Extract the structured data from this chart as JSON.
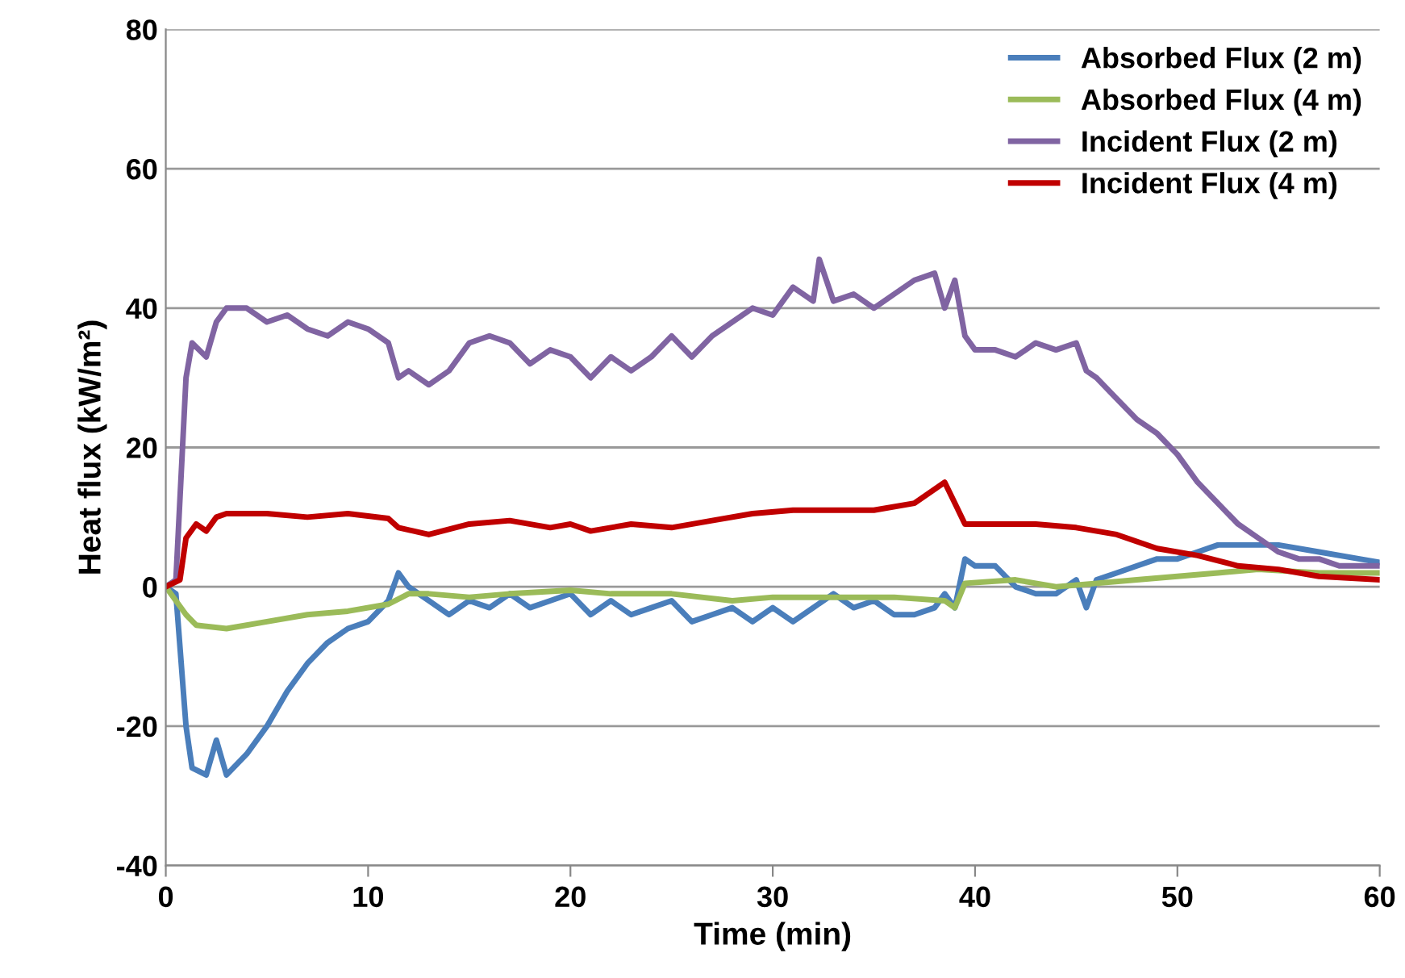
{
  "chart_data": {
    "type": "line",
    "xlabel": "Time (min)",
    "ylabel": "Heat flux (kW/m²)",
    "xlim": [
      0,
      60
    ],
    "xticks": [
      0,
      10,
      20,
      30,
      40,
      50,
      60
    ],
    "ylim": [
      -40,
      80
    ],
    "yticks": [
      -40,
      -20,
      0,
      20,
      40,
      60,
      80
    ],
    "grid": "y",
    "legend": "top right",
    "marker": "none",
    "line_style": "solid",
    "series": [
      {
        "name": "Absorbed Flux (2 m)",
        "color": "#4a7ebb",
        "x": [
          0,
          0.5,
          1,
          1.3,
          2,
          2.5,
          3,
          4,
          5,
          6,
          7,
          8,
          9,
          10,
          11,
          11.5,
          12,
          13,
          14,
          15,
          16,
          17,
          18,
          19,
          20,
          21,
          22,
          23,
          24,
          25,
          26,
          27,
          28,
          29,
          30,
          31,
          32,
          33,
          34,
          35,
          36,
          37,
          38,
          38.5,
          39,
          39.5,
          40,
          41,
          42,
          43,
          44,
          45,
          45.5,
          46,
          47,
          48,
          49,
          50,
          51,
          52,
          53,
          55,
          57,
          59,
          60
        ],
        "values": [
          0,
          -1,
          -20,
          -26,
          -27,
          -22,
          -27,
          -24,
          -20,
          -15,
          -11,
          -8,
          -6,
          -5,
          -2,
          2,
          0,
          -2,
          -4,
          -2,
          -3,
          -1,
          -3,
          -2,
          -1,
          -4,
          -2,
          -4,
          -3,
          -2,
          -5,
          -4,
          -3,
          -5,
          -3,
          -5,
          -3,
          -1,
          -3,
          -2,
          -4,
          -4,
          -3,
          -1,
          -3,
          4,
          3,
          3,
          0,
          -1,
          -1,
          1,
          -3,
          1,
          2,
          3,
          4,
          4,
          5,
          6,
          6,
          6,
          5,
          4,
          3.5
        ]
      },
      {
        "name": "Absorbed Flux (4 m)",
        "color": "#9bbb59",
        "x": [
          0,
          1,
          1.5,
          3,
          5,
          7,
          9,
          11,
          12,
          13,
          15,
          17,
          20,
          22,
          25,
          28,
          30,
          33,
          36,
          38.5,
          39,
          39.5,
          42,
          44,
          46,
          48,
          50,
          52,
          54,
          57,
          60
        ],
        "values": [
          0,
          -4,
          -5.5,
          -6,
          -5,
          -4,
          -3.5,
          -2.5,
          -1,
          -1,
          -1.5,
          -1,
          -0.5,
          -1,
          -1,
          -2,
          -1.5,
          -1.5,
          -1.5,
          -2,
          -3,
          0.5,
          1,
          0,
          0.5,
          1,
          1.5,
          2,
          2.5,
          2,
          2
        ]
      },
      {
        "name": "Incident Flux (2 m)",
        "color": "#8064a2",
        "x": [
          0,
          0.5,
          1,
          1.3,
          2,
          2.5,
          3,
          4,
          5,
          6,
          7,
          8,
          9,
          10,
          11,
          11.5,
          12,
          13,
          14,
          15,
          16,
          17,
          18,
          19,
          20,
          21,
          22,
          23,
          24,
          25,
          26,
          27,
          28,
          29,
          30,
          31,
          32,
          32.3,
          33,
          34,
          35,
          36,
          37,
          38,
          38.5,
          39,
          39.5,
          40,
          41,
          42,
          43,
          44,
          45,
          45.5,
          46,
          47,
          48,
          49,
          50,
          51,
          52,
          53,
          54,
          55,
          56,
          57,
          58,
          59,
          60
        ],
        "values": [
          0,
          1,
          30,
          35,
          33,
          38,
          40,
          40,
          38,
          39,
          37,
          36,
          38,
          37,
          35,
          30,
          31,
          29,
          31,
          35,
          36,
          35,
          32,
          34,
          33,
          30,
          33,
          31,
          33,
          36,
          33,
          36,
          38,
          40,
          39,
          43,
          41,
          47,
          41,
          42,
          40,
          42,
          44,
          45,
          40,
          44,
          36,
          34,
          34,
          33,
          35,
          34,
          35,
          31,
          30,
          27,
          24,
          22,
          19,
          15,
          12,
          9,
          7,
          5,
          4,
          4,
          3,
          3,
          3
        ]
      },
      {
        "name": "Incident Flux (4 m)",
        "color": "#c00000",
        "x": [
          0,
          0.7,
          1,
          1.5,
          2,
          2.5,
          3,
          5,
          7,
          9,
          11,
          11.5,
          13,
          15,
          17,
          19,
          20,
          21,
          23,
          25,
          27,
          29,
          31,
          33,
          35,
          37,
          38.5,
          39,
          39.5,
          41,
          43,
          45,
          47,
          49,
          51,
          53,
          55,
          57,
          60
        ],
        "values": [
          0,
          1,
          7,
          9,
          8,
          10,
          10.5,
          10.5,
          10,
          10.5,
          9.8,
          8.5,
          7.5,
          9,
          9.5,
          8.5,
          9,
          8,
          9,
          8.5,
          9.5,
          10.5,
          11,
          11,
          11,
          12,
          15,
          12,
          9,
          9,
          9,
          8.5,
          7.5,
          5.5,
          4.5,
          3,
          2.5,
          1.5,
          1
        ]
      }
    ]
  }
}
